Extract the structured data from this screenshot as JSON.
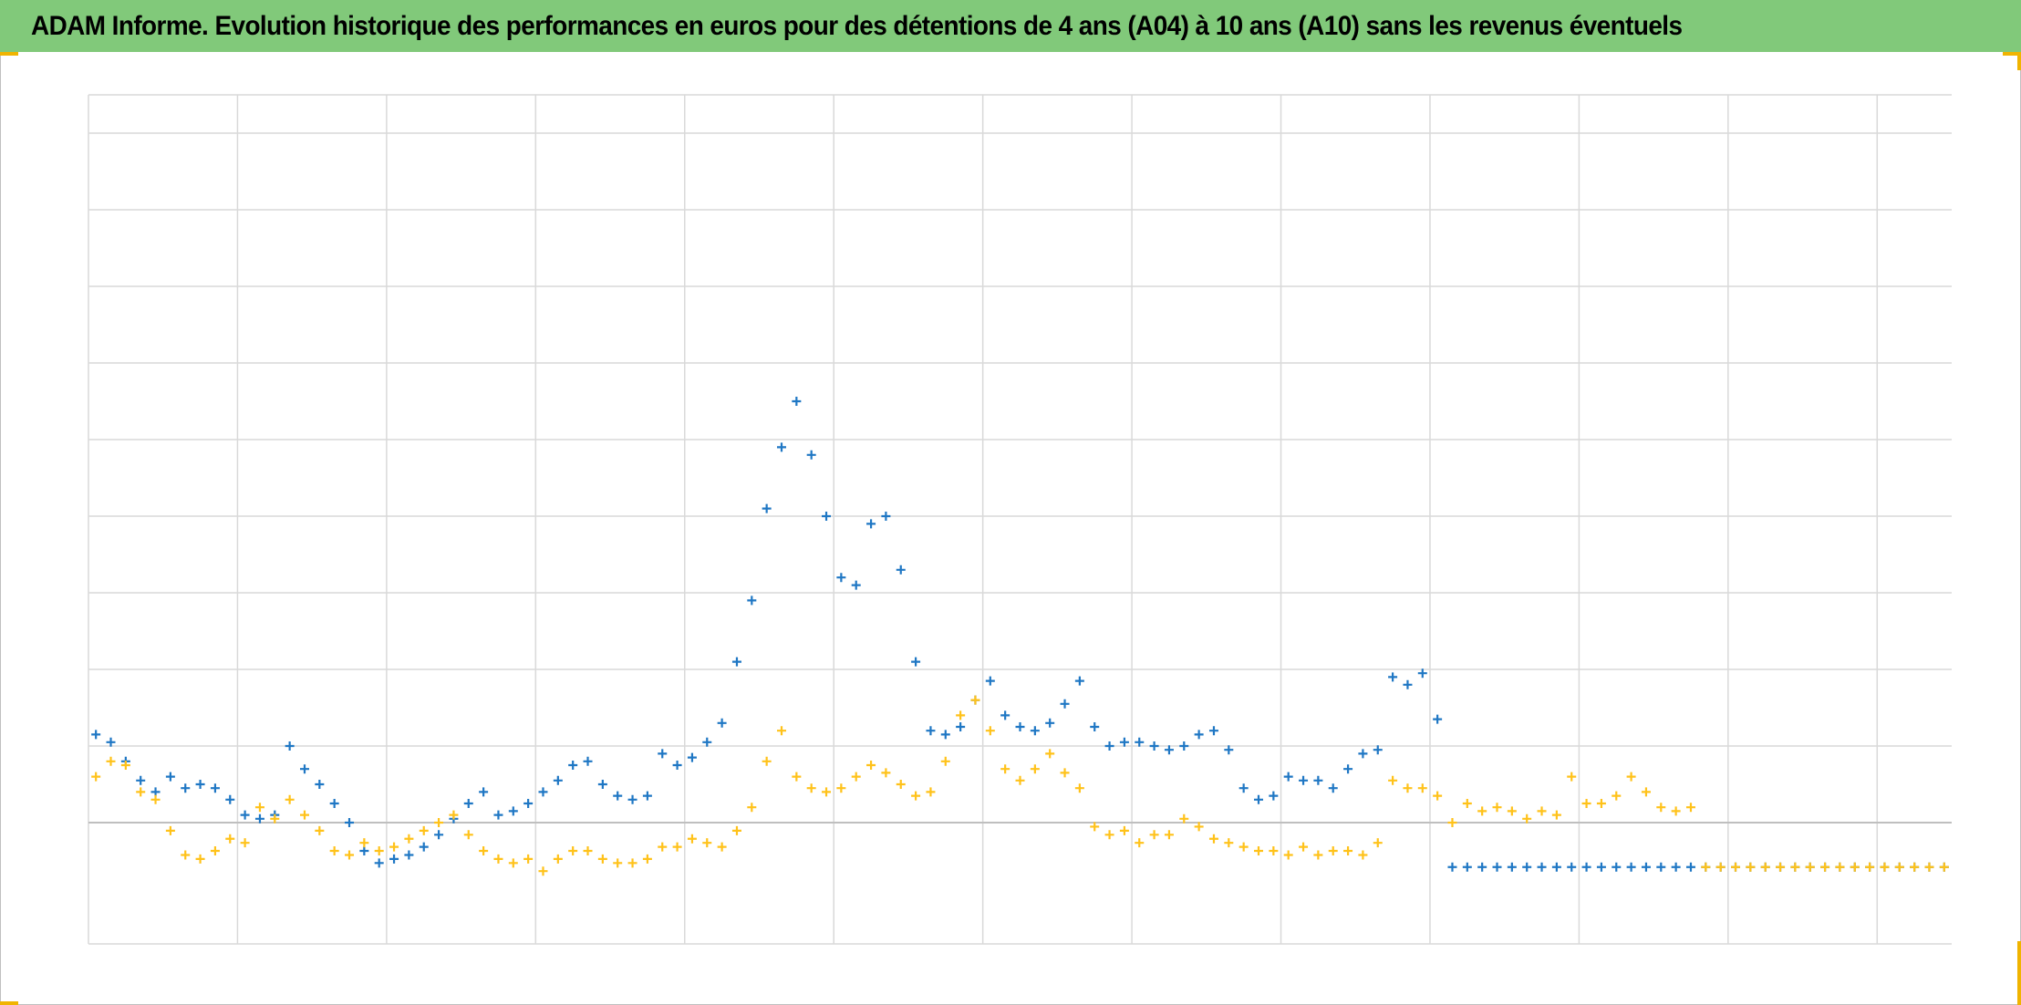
{
  "title": "ADAM Informe. Evolution historique des performances en euros pour des détentions de 4 ans (A04) à 10 ans (A10) sans les revenus éventuels",
  "colors": {
    "title_bg": "#81c97a",
    "grid": "#d9d9d9",
    "zero_line": "#bfbfbf",
    "series_A04": "#1f77c4",
    "series_A10": "#ffc21a"
  },
  "chart_data": {
    "type": "scatter",
    "title": "ADAM Informe. Evolution historique des performances en euros pour des détentions de 4 ans (A04) à 10 ans (A10) sans les revenus éventuels",
    "xlabel": "",
    "ylabel": "",
    "xlim": [
      0,
      12.5
    ],
    "ylim": [
      -1.5,
      9.5
    ],
    "grid": true,
    "legend": "none",
    "marker": "+",
    "notes_scale": "No axis tick labels are printed; x and y are read in gridline units (one unit per gridline), with 0 at the horizontal baseline.",
    "series": [
      {
        "key": "A04",
        "color": "#1f77c4",
        "x": [
          0.05,
          0.15,
          0.25,
          0.35,
          0.45,
          0.55,
          0.65,
          0.75,
          0.85,
          0.95,
          1.05,
          1.15,
          1.25,
          1.35,
          1.45,
          1.55,
          1.65,
          1.75,
          1.85,
          1.95,
          2.05,
          2.15,
          2.25,
          2.35,
          2.45,
          2.55,
          2.65,
          2.75,
          2.85,
          2.95,
          3.05,
          3.15,
          3.25,
          3.35,
          3.45,
          3.55,
          3.65,
          3.75,
          3.85,
          3.95,
          4.05,
          4.15,
          4.25,
          4.35,
          4.45,
          4.55,
          4.65,
          4.75,
          4.85,
          4.95,
          5.05,
          5.15,
          5.25,
          5.35,
          5.45,
          5.55,
          5.65,
          5.75,
          5.85,
          5.95,
          6.05,
          6.15,
          6.25,
          6.35,
          6.45,
          6.55,
          6.65,
          6.75,
          6.85,
          6.95,
          7.05,
          7.15,
          7.25,
          7.35,
          7.45,
          7.55,
          7.65,
          7.75,
          7.85,
          7.95,
          8.05,
          8.15,
          8.25,
          8.35,
          8.45,
          8.55,
          8.65,
          8.75,
          8.85,
          8.95,
          9.05,
          9.15,
          9.25,
          9.35,
          9.45,
          9.55,
          9.65,
          9.75,
          9.85,
          9.95,
          10.05,
          10.15,
          10.25,
          10.35,
          10.45,
          10.55,
          10.65,
          10.75,
          10.85,
          10.95,
          11.05,
          11.15,
          11.25,
          11.35,
          11.45,
          11.55,
          11.65,
          11.75,
          11.85,
          11.95,
          12.05,
          12.15,
          12.25,
          12.35,
          12.45
        ],
        "y": [
          1.15,
          1.05,
          0.8,
          0.55,
          0.4,
          0.6,
          0.45,
          0.5,
          0.45,
          0.3,
          0.1,
          0.05,
          0.1,
          1.0,
          0.7,
          0.5,
          0.25,
          0.0,
          -0.35,
          -0.5,
          -0.45,
          -0.4,
          -0.3,
          -0.15,
          0.05,
          0.25,
          0.4,
          0.1,
          0.15,
          0.25,
          0.4,
          0.55,
          0.75,
          0.8,
          0.5,
          0.35,
          0.3,
          0.35,
          0.9,
          0.75,
          0.85,
          1.05,
          1.3,
          2.1,
          2.9,
          4.1,
          4.9,
          5.5,
          4.8,
          4.0,
          3.2,
          3.1,
          3.9,
          4.0,
          3.3,
          2.1,
          1.2,
          1.15,
          1.25,
          1.6,
          1.85,
          1.4,
          1.25,
          1.2,
          1.3,
          1.55,
          1.85,
          1.25,
          1.0,
          1.05,
          1.05,
          1.0,
          0.95,
          1.0,
          1.15,
          1.2,
          0.95,
          0.45,
          0.3,
          0.35,
          0.6,
          0.55,
          0.55,
          0.45,
          0.7,
          0.9,
          0.95,
          1.9,
          1.8,
          1.95,
          1.35,
          -0.55,
          -0.55,
          -0.55,
          -0.55,
          -0.55,
          -0.55,
          -0.55,
          -0.55,
          -0.55,
          -0.55,
          -0.55,
          -0.55,
          -0.55,
          -0.55,
          -0.55,
          -0.55,
          -0.55,
          -0.55,
          -0.55,
          -0.55,
          -0.55,
          -0.55,
          -0.55,
          -0.55,
          -0.55,
          -0.55,
          -0.55,
          -0.55,
          -0.55,
          -0.55,
          -0.55,
          -0.55,
          -0.55,
          -0.55
        ]
      },
      {
        "key": "A10",
        "color": "#ffc21a",
        "x": [
          0.05,
          0.15,
          0.25,
          0.35,
          0.45,
          0.55,
          0.65,
          0.75,
          0.85,
          0.95,
          1.05,
          1.15,
          1.25,
          1.35,
          1.45,
          1.55,
          1.65,
          1.75,
          1.85,
          1.95,
          2.05,
          2.15,
          2.25,
          2.35,
          2.45,
          2.55,
          2.65,
          2.75,
          2.85,
          2.95,
          3.05,
          3.15,
          3.25,
          3.35,
          3.45,
          3.55,
          3.65,
          3.75,
          3.85,
          3.95,
          4.05,
          4.15,
          4.25,
          4.35,
          4.45,
          4.55,
          4.65,
          4.75,
          4.85,
          4.95,
          5.05,
          5.15,
          5.25,
          5.35,
          5.45,
          5.55,
          5.65,
          5.75,
          5.85,
          5.95,
          6.05,
          6.15,
          6.25,
          6.35,
          6.45,
          6.55,
          6.65,
          6.75,
          6.85,
          6.95,
          7.05,
          7.15,
          7.25,
          7.35,
          7.45,
          7.55,
          7.65,
          7.75,
          7.85,
          7.95,
          8.05,
          8.15,
          8.25,
          8.35,
          8.45,
          8.55,
          8.65,
          8.75,
          8.85,
          8.95,
          9.05,
          9.15,
          9.25,
          9.35,
          9.45,
          9.55,
          9.65,
          9.75,
          9.85,
          9.95,
          10.05,
          10.15,
          10.25,
          10.35,
          10.45,
          10.55,
          10.65,
          10.75,
          10.85,
          10.95,
          11.05,
          11.15,
          11.25,
          11.35,
          11.45,
          11.55,
          11.65,
          11.75,
          11.85,
          11.95,
          12.05,
          12.15,
          12.25,
          12.35,
          12.45
        ],
        "y": [
          0.6,
          0.8,
          0.75,
          0.4,
          0.3,
          -0.1,
          -0.4,
          -0.45,
          -0.35,
          -0.2,
          -0.25,
          0.2,
          0.05,
          0.3,
          0.1,
          -0.1,
          -0.35,
          -0.4,
          -0.25,
          -0.35,
          -0.3,
          -0.2,
          -0.1,
          0.0,
          0.1,
          -0.15,
          -0.35,
          -0.45,
          -0.5,
          -0.45,
          -0.6,
          -0.45,
          -0.35,
          -0.35,
          -0.45,
          -0.5,
          -0.5,
          -0.45,
          -0.3,
          -0.3,
          -0.2,
          -0.25,
          -0.3,
          -0.1,
          0.2,
          0.8,
          1.2,
          0.6,
          0.45,
          0.4,
          0.45,
          0.6,
          0.75,
          0.65,
          0.5,
          0.35,
          0.4,
          0.8,
          1.4,
          1.6,
          1.2,
          0.7,
          0.55,
          0.7,
          0.9,
          0.65,
          0.45,
          -0.05,
          -0.15,
          -0.1,
          -0.25,
          -0.15,
          -0.15,
          0.05,
          -0.05,
          -0.2,
          -0.25,
          -0.3,
          -0.35,
          -0.35,
          -0.4,
          -0.3,
          -0.4,
          -0.35,
          -0.35,
          -0.4,
          -0.25,
          0.55,
          0.45,
          0.45,
          0.35,
          0.0,
          0.25,
          0.15,
          0.2,
          0.15,
          0.05,
          0.15,
          0.1,
          0.6,
          0.25,
          0.25,
          0.35,
          0.6,
          0.4,
          0.2,
          0.15,
          0.2,
          -0.55,
          -0.55,
          -0.55,
          -0.55,
          -0.55,
          -0.55,
          -0.55,
          -0.55,
          -0.55,
          -0.55,
          -0.55,
          -0.55,
          -0.55,
          -0.55,
          -0.55,
          -0.55,
          -0.55
        ]
      }
    ]
  }
}
